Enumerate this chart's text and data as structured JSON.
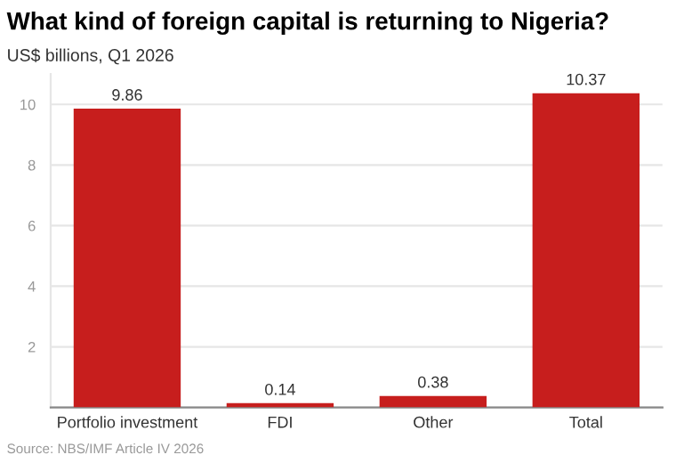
{
  "chart_data": {
    "type": "bar",
    "title": "What kind of foreign capital is returning to Nigeria?",
    "subtitle": "US$ billions, Q1 2026",
    "categories": [
      "Portfolio investment",
      "FDI",
      "Other",
      "Total"
    ],
    "values": [
      9.86,
      0.14,
      0.38,
      10.37
    ],
    "color": "#c71e1d",
    "data_labels": true,
    "ylim": [
      0,
      11
    ],
    "yticks": [
      {
        "value": 0,
        "label": null
      },
      2,
      4,
      6,
      8,
      10
    ],
    "grid": "y",
    "annotations": [
      "Source: NBS/IMF Article IV 2026"
    ]
  }
}
